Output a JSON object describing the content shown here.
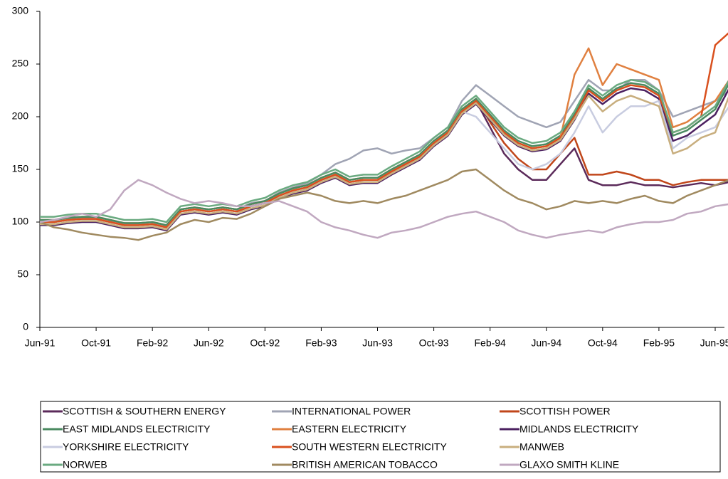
{
  "chart_data": {
    "type": "line",
    "categories": [
      "Jun-91",
      null,
      null,
      null,
      "Oct-91",
      null,
      null,
      null,
      "Feb-92",
      null,
      null,
      null,
      "Jun-92",
      null,
      null,
      null,
      "Oct-92",
      null,
      null,
      null,
      "Feb-93",
      null,
      null,
      null,
      "Jun-93",
      null,
      null,
      null,
      "Oct-93",
      null,
      null,
      null,
      "Feb-94",
      null,
      null,
      null,
      "Jun-94",
      null,
      null,
      null,
      "Oct-94",
      null,
      null,
      null,
      "Feb-95",
      null,
      null,
      null,
      "Jun-95",
      null
    ],
    "ylim": [
      0,
      300
    ],
    "yticks": [
      0,
      50,
      100,
      150,
      200,
      250,
      300
    ],
    "grid": false,
    "series": [
      {
        "name": "SCOTTISH & SOUTHERN ENERGY",
        "color": "#5b2a5a",
        "values": [
          100,
          100,
          102,
          103,
          103,
          100,
          97,
          97,
          98,
          95,
          110,
          112,
          110,
          112,
          110,
          115,
          118,
          125,
          130,
          133,
          140,
          145,
          138,
          140,
          140,
          148,
          155,
          162,
          175,
          185,
          205,
          215,
          190,
          165,
          150,
          140,
          140,
          155,
          170,
          140,
          135,
          135,
          138,
          135,
          135,
          133,
          135,
          137,
          135,
          138
        ]
      },
      {
        "name": "INTERNATIONAL POWER",
        "color": "#a0a4b4",
        "values": [
          100,
          100,
          103,
          104,
          104,
          101,
          99,
          98,
          98,
          96,
          110,
          112,
          112,
          114,
          112,
          118,
          120,
          128,
          133,
          137,
          145,
          155,
          160,
          168,
          170,
          165,
          168,
          170,
          180,
          190,
          215,
          230,
          220,
          210,
          200,
          195,
          190,
          195,
          215,
          235,
          225,
          225,
          235,
          235,
          225,
          200,
          205,
          210,
          215,
          225
        ]
      },
      {
        "name": "SCOTTISH POWER",
        "color": "#c0461a",
        "values": [
          102,
          102,
          104,
          105,
          105,
          102,
          99,
          99,
          100,
          97,
          112,
          114,
          112,
          114,
          112,
          117,
          120,
          127,
          132,
          135,
          142,
          147,
          140,
          142,
          142,
          150,
          157,
          164,
          177,
          187,
          207,
          217,
          195,
          175,
          160,
          150,
          150,
          165,
          180,
          145,
          145,
          148,
          145,
          140,
          140,
          135,
          138,
          140,
          140,
          140
        ]
      },
      {
        "name": "EAST MIDLANDS ELECTRICITY",
        "color": "#4a8a60",
        "values": [
          102,
          102,
          104,
          105,
          105,
          102,
          99,
          99,
          100,
          97,
          112,
          114,
          112,
          114,
          112,
          117,
          120,
          127,
          132,
          135,
          142,
          147,
          140,
          142,
          142,
          150,
          157,
          164,
          177,
          187,
          207,
          217,
          202,
          187,
          177,
          172,
          174,
          182,
          202,
          227,
          217,
          227,
          232,
          230,
          222,
          182,
          187,
          197,
          207,
          232
        ]
      },
      {
        "name": "EASTERN ELECTRICITY",
        "color": "#e08040",
        "values": [
          100,
          100,
          102,
          103,
          103,
          100,
          97,
          97,
          98,
          95,
          110,
          112,
          110,
          112,
          110,
          115,
          118,
          125,
          130,
          133,
          140,
          145,
          138,
          140,
          140,
          148,
          155,
          162,
          175,
          185,
          205,
          215,
          200,
          185,
          175,
          170,
          172,
          180,
          240,
          265,
          230,
          250,
          245,
          240,
          235,
          190,
          195,
          205,
          215,
          235
        ]
      },
      {
        "name": "MIDLANDS ELECTRICITY",
        "color": "#4b2060",
        "values": [
          97,
          97,
          99,
          100,
          100,
          97,
          94,
          94,
          95,
          92,
          107,
          109,
          107,
          109,
          107,
          112,
          115,
          122,
          127,
          130,
          137,
          142,
          135,
          137,
          137,
          145,
          152,
          159,
          172,
          182,
          202,
          212,
          197,
          182,
          172,
          167,
          169,
          177,
          197,
          222,
          212,
          222,
          227,
          225,
          217,
          177,
          182,
          192,
          202,
          227
        ]
      },
      {
        "name": "YORKSHIRE ELECTRICITY",
        "color": "#c8cce0",
        "values": [
          100,
          100,
          102,
          103,
          103,
          100,
          97,
          97,
          98,
          95,
          110,
          112,
          110,
          112,
          110,
          115,
          118,
          125,
          130,
          133,
          140,
          145,
          138,
          140,
          140,
          148,
          155,
          162,
          175,
          185,
          205,
          200,
          185,
          170,
          155,
          150,
          155,
          165,
          185,
          210,
          185,
          200,
          210,
          210,
          215,
          170,
          180,
          185,
          190,
          210
        ]
      },
      {
        "name": "SOUTH WESTERN ELECTRICITY",
        "color": "#d9501e",
        "values": [
          100,
          100,
          102,
          103,
          103,
          100,
          97,
          97,
          98,
          95,
          110,
          112,
          110,
          112,
          110,
          115,
          118,
          125,
          130,
          133,
          140,
          145,
          138,
          140,
          140,
          148,
          155,
          162,
          175,
          185,
          205,
          215,
          200,
          185,
          175,
          170,
          172,
          180,
          200,
          225,
          215,
          225,
          230,
          228,
          220,
          185,
          190,
          200,
          268,
          280
        ]
      },
      {
        "name": "MANWEB",
        "color": "#c8ae7e",
        "values": [
          98,
          98,
          100,
          101,
          101,
          98,
          95,
          95,
          96,
          93,
          108,
          110,
          108,
          110,
          108,
          113,
          116,
          123,
          128,
          131,
          138,
          143,
          136,
          138,
          138,
          146,
          153,
          160,
          173,
          183,
          203,
          213,
          198,
          183,
          173,
          168,
          170,
          178,
          198,
          220,
          205,
          215,
          220,
          215,
          210,
          165,
          170,
          180,
          185,
          220
        ]
      },
      {
        "name": "NORWEB",
        "color": "#6aaa80",
        "values": [
          105,
          105,
          107,
          108,
          108,
          105,
          102,
          102,
          103,
          100,
          115,
          117,
          115,
          117,
          115,
          120,
          123,
          130,
          135,
          138,
          145,
          150,
          143,
          145,
          145,
          153,
          160,
          167,
          180,
          190,
          210,
          220,
          205,
          190,
          180,
          175,
          177,
          185,
          205,
          230,
          220,
          230,
          235,
          233,
          225,
          185,
          190,
          200,
          210,
          235
        ]
      },
      {
        "name": "BRITISH AMERICAN TOBACCO",
        "color": "#a08a60",
        "values": [
          100,
          95,
          93,
          90,
          88,
          86,
          85,
          83,
          87,
          90,
          98,
          102,
          100,
          104,
          103,
          108,
          115,
          122,
          125,
          128,
          125,
          120,
          118,
          120,
          118,
          122,
          125,
          130,
          135,
          140,
          148,
          150,
          140,
          130,
          122,
          118,
          112,
          115,
          120,
          118,
          120,
          118,
          122,
          125,
          120,
          118,
          125,
          130,
          135,
          140
        ]
      },
      {
        "name": "GLAXO SMITH KLINE",
        "color": "#c0a8c0",
        "values": [
          100,
          102,
          105,
          108,
          105,
          112,
          130,
          140,
          135,
          128,
          122,
          118,
          120,
          118,
          115,
          115,
          118,
          120,
          115,
          110,
          100,
          95,
          92,
          88,
          85,
          90,
          92,
          95,
          100,
          105,
          108,
          110,
          105,
          100,
          92,
          88,
          85,
          88,
          90,
          92,
          90,
          95,
          98,
          100,
          100,
          102,
          108,
          110,
          115,
          117
        ]
      }
    ]
  }
}
